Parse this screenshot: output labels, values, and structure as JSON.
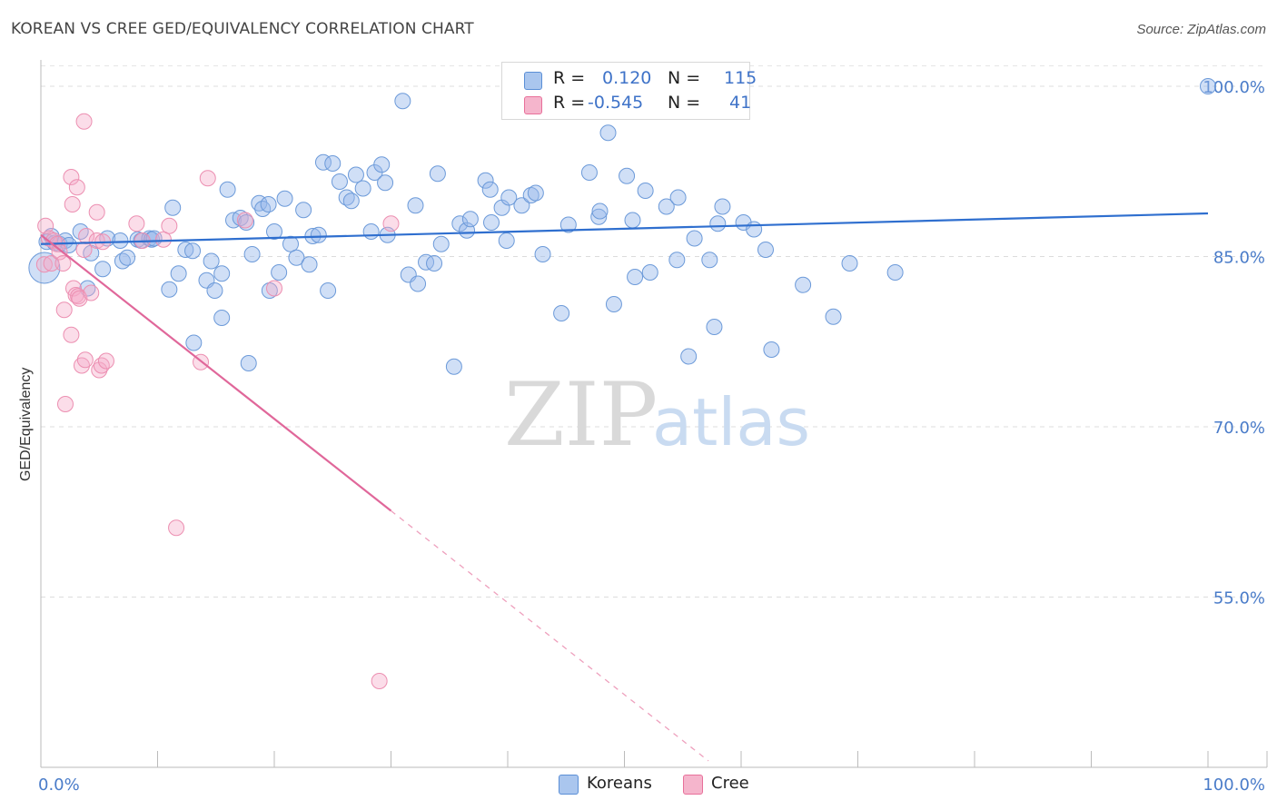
{
  "title": "KOREAN VS CREE GED/EQUIVALENCY CORRELATION CHART",
  "source": "Source: ZipAtlas.com",
  "watermark": {
    "zip": "ZIP",
    "atlas": "atlas"
  },
  "legend_top": {
    "rows": [
      {
        "r_label": "R =",
        "r_value": "0.120",
        "n_label": "N =",
        "n_value": "115"
      },
      {
        "r_label": "R =",
        "r_value": "-0.545",
        "n_label": "N =",
        "n_value": "41"
      }
    ]
  },
  "legend_bottom": {
    "items": [
      "Koreans",
      "Cree"
    ]
  },
  "colors": {
    "blue": "#5b8fd6",
    "blue_fill": "#aac6ee",
    "pink": "#e8709a",
    "pink_fill": "#f5b5cc",
    "tick": "#4a7cc9"
  },
  "chart_data": {
    "type": "scatter",
    "title": "KOREAN VS CREE GED/EQUIVALENCY CORRELATION CHART",
    "xlabel": "",
    "ylabel": "GED/Equivalency",
    "xlim": [
      0,
      100
    ],
    "ylim": [
      40,
      102
    ],
    "x_tick_labels": [
      "0.0%",
      "100.0%"
    ],
    "y_ticks": [
      55,
      70,
      85,
      100
    ],
    "y_tick_labels": [
      "55.0%",
      "70.0%",
      "85.0%",
      "100.0%"
    ],
    "grid": "dashed horizontal",
    "legend": "bottom-center",
    "series": [
      {
        "name": "Koreans",
        "color": "#5b8fd6",
        "trend": {
          "x": [
            0,
            100
          ],
          "y": [
            86.1,
            88.8
          ],
          "style": "solid"
        },
        "points": [
          [
            0.5,
            86.3
          ],
          [
            0.9,
            86.8
          ],
          [
            1.2,
            86.2
          ],
          [
            1.6,
            86.1
          ],
          [
            2.1,
            86.4
          ],
          [
            2.4,
            86.0
          ],
          [
            3.4,
            87.2
          ],
          [
            4.0,
            82.2
          ],
          [
            4.3,
            85.3
          ],
          [
            5.3,
            83.9
          ],
          [
            5.7,
            86.6
          ],
          [
            6.8,
            86.4
          ],
          [
            7.0,
            84.6
          ],
          [
            7.4,
            84.9
          ],
          [
            8.3,
            86.5
          ],
          [
            8.6,
            86.4
          ],
          [
            9.3,
            86.6
          ],
          [
            9.5,
            86.5
          ],
          [
            9.7,
            86.6
          ],
          [
            11.0,
            82.1
          ],
          [
            11.3,
            89.3
          ],
          [
            11.8,
            83.5
          ],
          [
            12.4,
            85.6
          ],
          [
            13.0,
            85.5
          ],
          [
            13.1,
            77.4
          ],
          [
            14.2,
            82.9
          ],
          [
            14.6,
            84.6
          ],
          [
            14.9,
            82.0
          ],
          [
            15.5,
            83.5
          ],
          [
            15.5,
            79.6
          ],
          [
            16.0,
            90.9
          ],
          [
            16.5,
            88.2
          ],
          [
            17.1,
            88.4
          ],
          [
            17.6,
            88.0
          ],
          [
            17.8,
            75.6
          ],
          [
            18.1,
            85.2
          ],
          [
            18.7,
            89.7
          ],
          [
            19.0,
            89.2
          ],
          [
            19.5,
            89.6
          ],
          [
            19.6,
            82.0
          ],
          [
            20.0,
            87.2
          ],
          [
            20.4,
            83.6
          ],
          [
            20.9,
            90.1
          ],
          [
            21.4,
            86.1
          ],
          [
            21.9,
            84.9
          ],
          [
            22.5,
            89.1
          ],
          [
            23.0,
            84.3
          ],
          [
            23.3,
            86.8
          ],
          [
            23.8,
            86.9
          ],
          [
            24.2,
            93.3
          ],
          [
            24.6,
            82.0
          ],
          [
            25.0,
            93.2
          ],
          [
            25.6,
            91.6
          ],
          [
            26.2,
            90.2
          ],
          [
            26.6,
            89.9
          ],
          [
            27.0,
            92.2
          ],
          [
            27.6,
            91.0
          ],
          [
            28.3,
            87.2
          ],
          [
            28.6,
            92.4
          ],
          [
            29.2,
            93.1
          ],
          [
            29.5,
            91.5
          ],
          [
            29.7,
            86.9
          ],
          [
            31.0,
            98.7
          ],
          [
            31.5,
            83.4
          ],
          [
            32.1,
            89.5
          ],
          [
            32.3,
            82.6
          ],
          [
            33.0,
            84.5
          ],
          [
            33.7,
            84.4
          ],
          [
            34.0,
            92.3
          ],
          [
            34.3,
            86.1
          ],
          [
            35.4,
            75.3
          ],
          [
            35.9,
            87.9
          ],
          [
            36.5,
            87.3
          ],
          [
            36.8,
            88.3
          ],
          [
            38.1,
            91.7
          ],
          [
            38.5,
            90.9
          ],
          [
            38.6,
            88.0
          ],
          [
            39.5,
            89.3
          ],
          [
            39.9,
            86.4
          ],
          [
            40.1,
            90.2
          ],
          [
            40.2,
            100.1
          ],
          [
            41.2,
            89.5
          ],
          [
            42.0,
            90.4
          ],
          [
            42.4,
            90.6
          ],
          [
            43.0,
            85.2
          ],
          [
            44.6,
            80.0
          ],
          [
            45.2,
            87.8
          ],
          [
            47.0,
            92.4
          ],
          [
            47.8,
            88.5
          ],
          [
            47.9,
            89.0
          ],
          [
            48.6,
            95.9
          ],
          [
            49.1,
            80.8
          ],
          [
            50.2,
            92.1
          ],
          [
            50.7,
            88.2
          ],
          [
            50.9,
            83.2
          ],
          [
            51.8,
            90.8
          ],
          [
            52.2,
            83.6
          ],
          [
            53.6,
            89.4
          ],
          [
            54.5,
            84.7
          ],
          [
            54.6,
            90.2
          ],
          [
            55.5,
            76.2
          ],
          [
            56.0,
            86.6
          ],
          [
            57.3,
            84.7
          ],
          [
            57.7,
            78.8
          ],
          [
            58.0,
            87.9
          ],
          [
            58.4,
            89.4
          ],
          [
            60.2,
            88.0
          ],
          [
            61.1,
            87.4
          ],
          [
            62.1,
            85.6
          ],
          [
            62.6,
            76.8
          ],
          [
            65.3,
            82.5
          ],
          [
            67.9,
            79.7
          ],
          [
            69.3,
            84.4
          ],
          [
            73.2,
            83.6
          ],
          [
            100.0,
            100.0
          ]
        ]
      },
      {
        "name": "Cree",
        "color": "#e8709a",
        "trend": {
          "x": [
            0,
            30
          ],
          "y": [
            86.9,
            62.6
          ],
          "style": "solid",
          "dashed_extension_to_x": 57.2
        },
        "points": [
          [
            0.3,
            84.3
          ],
          [
            0.4,
            87.7
          ],
          [
            0.7,
            86.6
          ],
          [
            0.9,
            84.4
          ],
          [
            1.1,
            86.4
          ],
          [
            1.4,
            86.1
          ],
          [
            1.6,
            85.4
          ],
          [
            1.9,
            84.4
          ],
          [
            2.0,
            80.3
          ],
          [
            2.1,
            72.0
          ],
          [
            2.6,
            78.1
          ],
          [
            2.6,
            92.0
          ],
          [
            2.7,
            89.6
          ],
          [
            2.8,
            82.2
          ],
          [
            3.0,
            81.6
          ],
          [
            3.1,
            91.1
          ],
          [
            3.2,
            81.5
          ],
          [
            3.3,
            81.3
          ],
          [
            3.5,
            75.4
          ],
          [
            3.7,
            85.6
          ],
          [
            3.7,
            96.9
          ],
          [
            3.8,
            75.9
          ],
          [
            3.9,
            86.8
          ],
          [
            4.3,
            81.8
          ],
          [
            4.8,
            88.9
          ],
          [
            4.8,
            86.4
          ],
          [
            5.0,
            75.0
          ],
          [
            5.2,
            75.4
          ],
          [
            5.3,
            86.3
          ],
          [
            5.6,
            75.8
          ],
          [
            8.2,
            87.9
          ],
          [
            8.7,
            86.4
          ],
          [
            10.5,
            86.5
          ],
          [
            11.0,
            87.7
          ],
          [
            11.6,
            61.1
          ],
          [
            13.7,
            75.7
          ],
          [
            14.3,
            91.9
          ],
          [
            17.5,
            88.2
          ],
          [
            20.0,
            82.2
          ],
          [
            29.0,
            47.6
          ],
          [
            30.0,
            87.9
          ]
        ]
      }
    ]
  }
}
